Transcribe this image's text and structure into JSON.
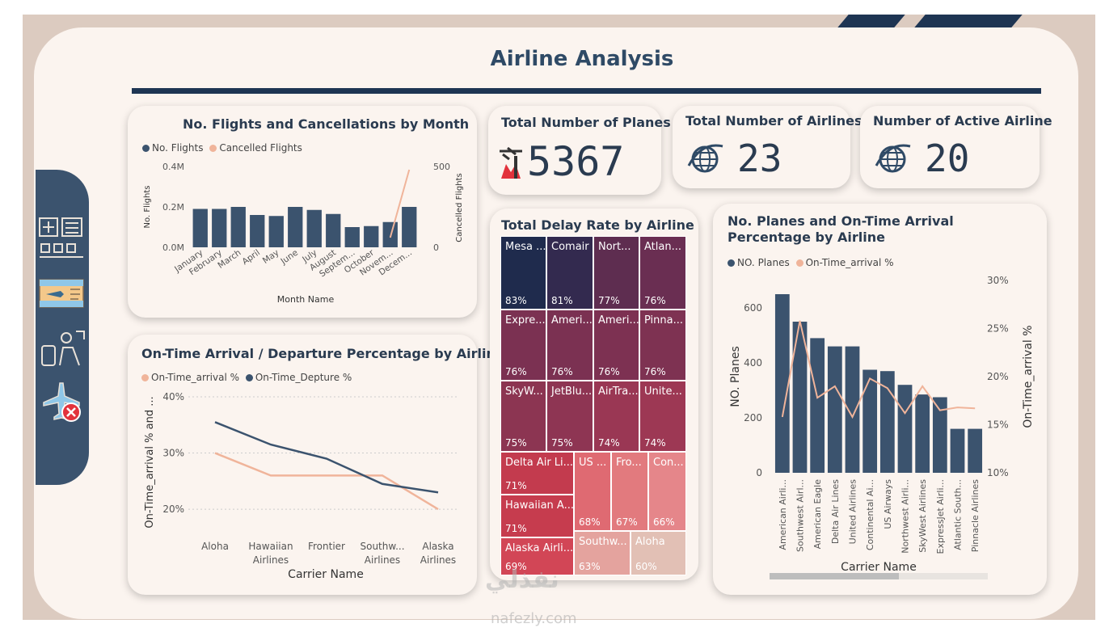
{
  "header": {
    "title": "Airline Analysis"
  },
  "colors": {
    "navy": "#3b536e",
    "peach": "#f0b49a",
    "dark": "#1e3553"
  },
  "sidebar": {
    "icons": [
      "airport-icon",
      "ticket-icon",
      "passenger-icon",
      "cancelled-flight-icon"
    ]
  },
  "kpis": [
    {
      "label": "Total Number of Planes",
      "value": "5367",
      "icon": "plane-icon"
    },
    {
      "label": "Total Number of Airlines",
      "value": "23",
      "icon": "globe-icon"
    },
    {
      "label": "Number of Active Airline",
      "value": "20",
      "icon": "globe-icon"
    }
  ],
  "watermark": {
    "text": "نفذلي",
    "url": "nafezly.com"
  },
  "chart_data": [
    {
      "type": "bar",
      "title": "No. Flights and Cancellations by Month",
      "legend": [
        "No. Flights",
        "Cancelled Flights"
      ],
      "xlabel": "Month Name",
      "ylabel": "No. Flights",
      "y2label": "Cancelled Flights",
      "categories": [
        "January",
        "February",
        "March",
        "April",
        "May",
        "June",
        "July",
        "August",
        "Septem...",
        "October",
        "Novem...",
        "Decem..."
      ],
      "yticks": [
        "0.4M",
        "0.2M",
        "0.0M"
      ],
      "y2ticks": [
        "500",
        "0"
      ],
      "ylim": [
        0,
        0.4
      ],
      "y2lim": [
        0,
        500
      ],
      "series": [
        {
          "name": "No. Flights",
          "type": "bar",
          "values": [
            0.19,
            0.19,
            0.2,
            0.16,
            0.155,
            0.2,
            0.185,
            0.165,
            0.1,
            0.105,
            0.125,
            0.2
          ]
        },
        {
          "name": "Cancelled Flights",
          "type": "line",
          "values": [
            null,
            null,
            null,
            null,
            null,
            null,
            null,
            null,
            null,
            null,
            60,
            480
          ]
        }
      ]
    },
    {
      "type": "line",
      "title": "On-Time Arrival / Departure Percentage by Airline",
      "legend": [
        "On-Time_arrival %",
        "On-Time_Depture %"
      ],
      "xlabel": "Carrier Name",
      "ylabel": "On-Time_arrival % and ...",
      "categories": [
        "Aloha",
        "Hawaiian Airlines",
        "Frontier",
        "Southw... Airlines",
        "Alaska Airlines"
      ],
      "yticks": [
        "40%",
        "30%",
        "20%"
      ],
      "ylim": [
        18,
        40
      ],
      "series": [
        {
          "name": "On-Time_arrival %",
          "values": [
            30,
            26,
            26,
            26,
            20
          ]
        },
        {
          "name": "On-Time_Depture %",
          "values": [
            35.5,
            31.5,
            29,
            24.5,
            23
          ]
        }
      ]
    },
    {
      "type": "treemap",
      "title": "Total Delay Rate by Airline",
      "items": [
        {
          "name": "Mesa ...",
          "value": "83%",
          "color": "#1f2b4d"
        },
        {
          "name": "Comair",
          "value": "81%",
          "color": "#332a4f"
        },
        {
          "name": "Nort...",
          "value": "77%",
          "color": "#5e2d50"
        },
        {
          "name": "Atlan...",
          "value": "76%",
          "color": "#6a2e52"
        },
        {
          "name": "Expre...",
          "value": "76%",
          "color": "#7b3152"
        },
        {
          "name": "Ameri...",
          "value": "76%",
          "color": "#7b3152"
        },
        {
          "name": "Ameri...",
          "value": "76%",
          "color": "#7d3152"
        },
        {
          "name": "Pinna...",
          "value": "76%",
          "color": "#7e3252"
        },
        {
          "name": "SkyW...",
          "value": "75%",
          "color": "#8c3552"
        },
        {
          "name": "JetBlu...",
          "value": "75%",
          "color": "#8e3553"
        },
        {
          "name": "AirTra...",
          "value": "74%",
          "color": "#9a3754"
        },
        {
          "name": "Unite...",
          "value": "74%",
          "color": "#9d3854"
        },
        {
          "name": "Delta Air Li...",
          "value": "71%",
          "color": "#c33b4e"
        },
        {
          "name": "Hawaiian A...",
          "value": "71%",
          "color": "#c63c4e"
        },
        {
          "name": "Alaska Airli...",
          "value": "69%",
          "color": "#d24656"
        },
        {
          "name": "US ...",
          "value": "68%",
          "color": "#df6a72"
        },
        {
          "name": "Fro...",
          "value": "67%",
          "color": "#e27a7e"
        },
        {
          "name": "Con...",
          "value": "66%",
          "color": "#e5868a"
        },
        {
          "name": "Southw...",
          "value": "63%",
          "color": "#e4a39e"
        },
        {
          "name": "Aloha",
          "value": "60%",
          "color": "#e2c0b5"
        }
      ]
    },
    {
      "type": "bar",
      "title": "No. Planes and On-Time Arrival Percentage by Airline",
      "legend": [
        "NO. Planes",
        "On-Time_arrival %"
      ],
      "xlabel": "Carrier Name",
      "ylabel": "NO. Planes",
      "y2label": "On-Time_arrival %",
      "categories": [
        "American Airli...",
        "Southwest Airl...",
        "American Eagle",
        "Delta Air Lines",
        "United Airlines",
        "Continental Ai...",
        "US Airways",
        "Northwest Airli...",
        "SkyWest Airlines",
        "ExpressJet Airli...",
        "Atlantic South...",
        "Pinnacle Airlines"
      ],
      "yticks": [
        "600",
        "400",
        "200",
        "0"
      ],
      "y2ticks": [
        "30%",
        "25%",
        "20%",
        "15%",
        "10%"
      ],
      "ylim": [
        0,
        700
      ],
      "y2lim": [
        10,
        30
      ],
      "series": [
        {
          "name": "NO. Planes",
          "type": "bar",
          "values": [
            650,
            550,
            490,
            460,
            460,
            375,
            370,
            320,
            285,
            275,
            160,
            160
          ]
        },
        {
          "name": "On-Time_arrival %",
          "type": "line",
          "values": [
            15.8,
            25.8,
            17.8,
            19,
            15.8,
            19.8,
            18.8,
            16.2,
            19,
            16.5,
            16.8,
            16.7
          ]
        }
      ]
    }
  ]
}
